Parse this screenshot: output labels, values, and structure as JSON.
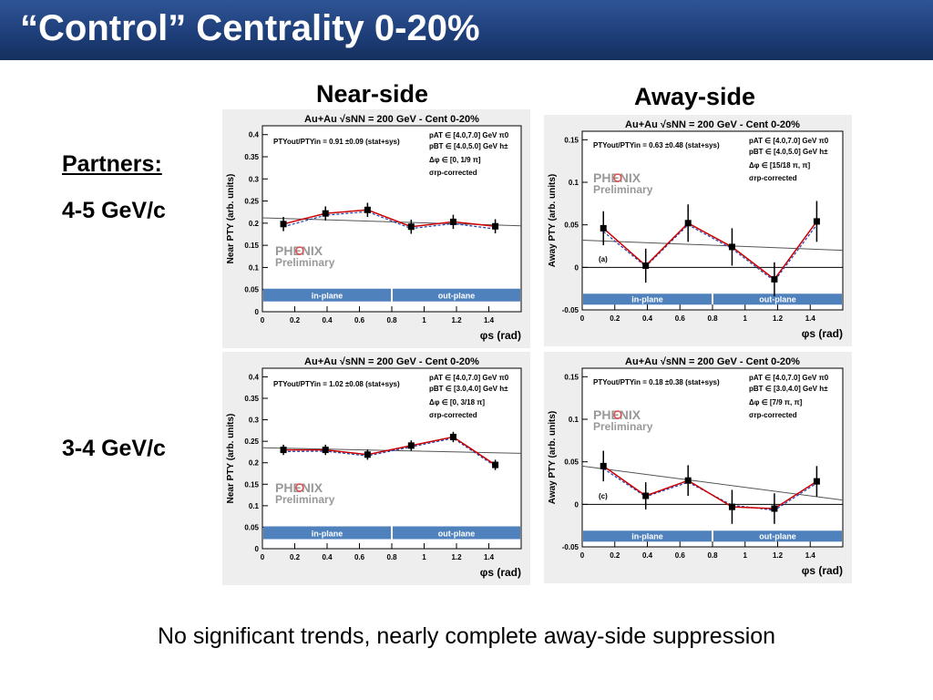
{
  "slide": {
    "title": "“Control” Centrality 0-20%",
    "near_side": "Near-side",
    "away_side": "Away-side",
    "partners": "Partners:",
    "row1": "4-5 GeV/c",
    "row2": "3-4 GeV/c",
    "footer": "No significant trends, nearly complete away-side suppression"
  },
  "colors": {
    "title_bar": "#1e3f7a",
    "band": "#4f81bd",
    "series_red": "#cc0000",
    "series_blue": "#1f3fb0",
    "fit": "#555555",
    "logo_red": "#e05050",
    "logo_gray": "#999999"
  },
  "logo": {
    "text": "PHENIX",
    "sub": "Preliminary"
  },
  "chart_data": [
    {
      "type": "line",
      "title": "Au+Au √sNN = 200 GeV - Cent 0-20%",
      "ylabel": "Near PTY (arb. units)",
      "xlabel": "φs (rad)",
      "xlim": [
        0,
        1.6
      ],
      "ylim": [
        0,
        0.42
      ],
      "xticks": [
        "0",
        "0.2",
        "0.4",
        "0.6",
        "0.8",
        "1",
        "1.2",
        "1.4"
      ],
      "yticks": [
        "0",
        "0.05",
        "0.1",
        "0.15",
        "0.2",
        "0.25",
        "0.3",
        "0.35",
        "0.4"
      ],
      "ratio": "PTYout/PTYin = 0.91 ±0.09 (stat+sys)",
      "pA": "pAT ∈ [4.0,7.0] GeV π0",
      "pB": "pBT ∈ [4.0,5.0] GeV h±",
      "dphi": "Δφ ∈ [0, 1/9 π]",
      "sigma": "σrp-corrected",
      "band_in": "in-plane",
      "band_out": "out-plane",
      "panel_letter": "",
      "x": [
        0.13,
        0.39,
        0.65,
        0.92,
        1.18,
        1.44
      ],
      "y": [
        0.198,
        0.222,
        0.23,
        0.192,
        0.203,
        0.193
      ],
      "err": [
        0.016,
        0.016,
        0.016,
        0.016,
        0.016,
        0.016
      ],
      "y2": [
        0.192,
        0.218,
        0.226,
        0.188,
        0.199,
        0.187
      ],
      "fit": [
        0.212,
        0.194
      ]
    },
    {
      "type": "line",
      "title": "Au+Au √sNN = 200 GeV - Cent 0-20%",
      "ylabel": "Away PTY (arb. units)",
      "xlabel": "φs (rad)",
      "xlim": [
        0,
        1.6
      ],
      "ylim": [
        -0.05,
        0.16
      ],
      "xticks": [
        "0",
        "0.2",
        "0.4",
        "0.6",
        "0.8",
        "1",
        "1.2",
        "1.4"
      ],
      "yticks": [
        "-0.05",
        "0",
        "0.05",
        "0.1",
        "0.15"
      ],
      "ratio": "PTYout/PTYin = 0.63 ±0.48 (stat+sys)",
      "pA": "pAT ∈ [4.0,7.0] GeV π0",
      "pB": "pBT ∈ [4.0,5.0] GeV h±",
      "dphi": "Δφ ∈ [15/18 π, π]",
      "sigma": "σrp-corrected",
      "band_in": "in-plane",
      "band_out": "out-plane",
      "panel_letter": "(a)",
      "x": [
        0.13,
        0.39,
        0.65,
        0.92,
        1.18,
        1.44
      ],
      "y": [
        0.046,
        0.002,
        0.052,
        0.024,
        -0.014,
        0.054
      ],
      "err": [
        0.02,
        0.02,
        0.022,
        0.022,
        0.02,
        0.024
      ],
      "y2": [
        0.042,
        0.001,
        0.05,
        0.022,
        -0.016,
        0.05
      ],
      "fit": [
        0.032,
        0.02
      ]
    },
    {
      "type": "line",
      "title": "Au+Au √sNN = 200 GeV - Cent 0-20%",
      "ylabel": "Near PTY (arb. units)",
      "xlabel": "φs (rad)",
      "xlim": [
        0,
        1.6
      ],
      "ylim": [
        0,
        0.42
      ],
      "xticks": [
        "0",
        "0.2",
        "0.4",
        "0.6",
        "0.8",
        "1",
        "1.2",
        "1.4"
      ],
      "yticks": [
        "0",
        "0.05",
        "0.1",
        "0.15",
        "0.2",
        "0.25",
        "0.3",
        "0.35",
        "0.4"
      ],
      "ratio": "PTYout/PTYin = 1.02 ±0.08 (stat+sys)",
      "pA": "pAT ∈ [4.0,7.0] GeV π0",
      "pB": "pBT ∈ [3.0,4.0] GeV h±",
      "dphi": "Δφ ∈ [0, 3/18 π]",
      "sigma": "σrp-corrected",
      "band_in": "in-plane",
      "band_out": "out-plane",
      "panel_letter": "",
      "x": [
        0.13,
        0.39,
        0.65,
        0.92,
        1.18,
        1.44
      ],
      "y": [
        0.23,
        0.23,
        0.219,
        0.24,
        0.26,
        0.195
      ],
      "err": [
        0.012,
        0.012,
        0.012,
        0.012,
        0.012,
        0.012
      ],
      "y2": [
        0.226,
        0.227,
        0.216,
        0.237,
        0.257,
        0.192
      ],
      "fit": [
        0.235,
        0.222
      ]
    },
    {
      "type": "line",
      "title": "Au+Au √sNN = 200 GeV - Cent 0-20%",
      "ylabel": "Away PTY (arb. units)",
      "xlabel": "φs (rad)",
      "xlim": [
        0,
        1.6
      ],
      "ylim": [
        -0.05,
        0.16
      ],
      "xticks": [
        "0",
        "0.2",
        "0.4",
        "0.6",
        "0.8",
        "1",
        "1.2",
        "1.4"
      ],
      "yticks": [
        "-0.05",
        "0",
        "0.05",
        "0.1",
        "0.15"
      ],
      "ratio": "PTYout/PTYin = 0.18 ±0.38 (stat+sys)",
      "pA": "pAT ∈ [4.0,7.0] GeV π0",
      "pB": "pBT ∈ [3.0,4.0] GeV h±",
      "dphi": "Δφ ∈ [7/9 π, π]",
      "sigma": "σrp-corrected",
      "band_in": "in-plane",
      "band_out": "out-plane",
      "panel_letter": "(c)",
      "x": [
        0.13,
        0.39,
        0.65,
        0.92,
        1.18,
        1.44
      ],
      "y": [
        0.045,
        0.01,
        0.028,
        -0.003,
        -0.005,
        0.027
      ],
      "err": [
        0.018,
        0.016,
        0.018,
        0.02,
        0.018,
        0.018
      ],
      "y2": [
        0.042,
        0.009,
        0.026,
        -0.001,
        -0.007,
        0.025
      ],
      "fit": [
        0.045,
        0.005
      ]
    }
  ]
}
